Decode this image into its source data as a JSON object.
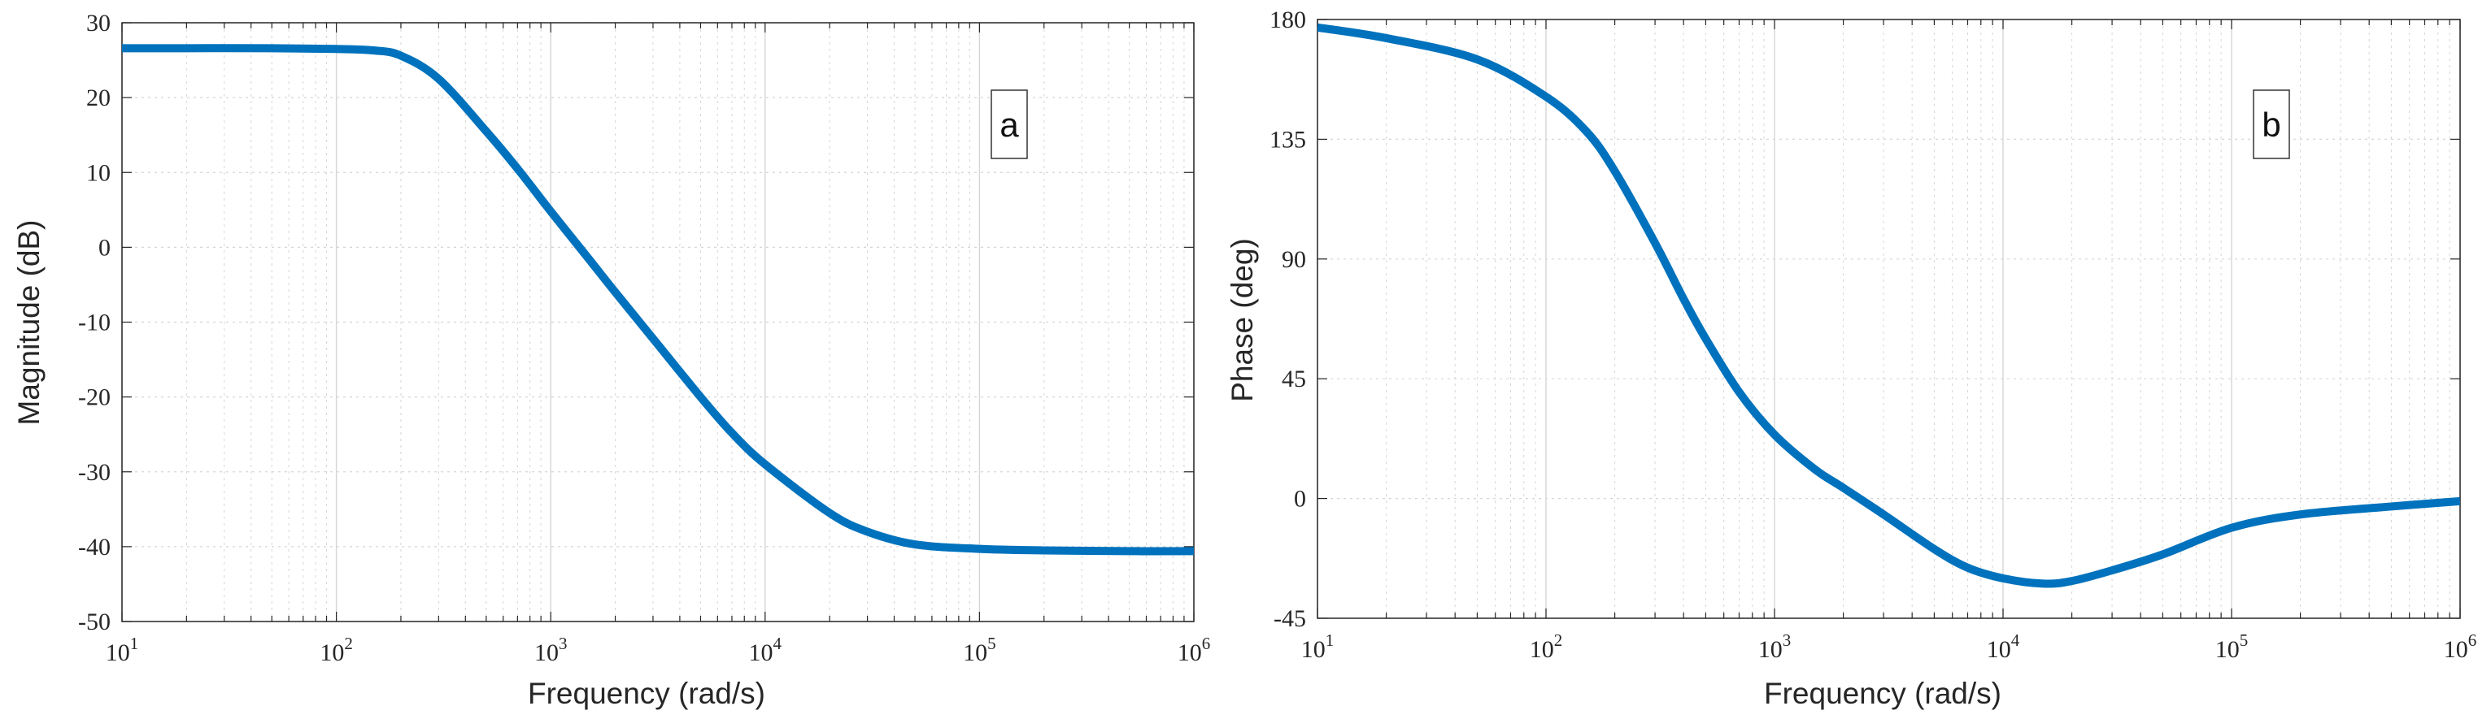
{
  "colors": {
    "line": "#0072bd",
    "grid": "#d6d6d6",
    "axis": "#262626"
  },
  "chart_data": [
    {
      "type": "line",
      "xlabel": "Frequency  (rad/s)",
      "ylabel": "Magnitude (dB)",
      "xscale": "log",
      "xlim": [
        10,
        1000000
      ],
      "ylim": [
        -50,
        30
      ],
      "grid": true,
      "x_ticks": [
        "10^1",
        "10^2",
        "10^3",
        "10^4",
        "10^5",
        "10^6"
      ],
      "y_ticks": [
        "30",
        "20",
        "10",
        "0",
        "-10",
        "-20",
        "-30",
        "-40",
        "-50"
      ],
      "annotation": "a",
      "series": [
        {
          "x": [
            10,
            20,
            50,
            100,
            150,
            200,
            300,
            500,
            700,
            1000,
            1500,
            2000,
            3000,
            5000,
            7000,
            10000,
            20000,
            30000,
            50000,
            100000,
            200000,
            500000,
            1000000
          ],
          "values": [
            26.6,
            26.6,
            26.6,
            26.5,
            26.3,
            25.6,
            22.5,
            15.5,
            10.5,
            4.8,
            -1.5,
            -6.0,
            -12.2,
            -20.0,
            -24.8,
            -29.0,
            -35.5,
            -38.0,
            -39.7,
            -40.3,
            -40.5,
            -40.6,
            -40.6
          ]
        }
      ]
    },
    {
      "type": "line",
      "xlabel": "Frequency  (rad/s)",
      "ylabel": "Phase (deg)",
      "xscale": "log",
      "xlim": [
        10,
        1000000
      ],
      "ylim": [
        -45,
        180
      ],
      "grid": true,
      "x_ticks": [
        "10^1",
        "10^2",
        "10^3",
        "10^4",
        "10^5",
        "10^6"
      ],
      "y_ticks": [
        "180",
        "135",
        "90",
        "45",
        "0",
        "-45"
      ],
      "annotation": "b",
      "series": [
        {
          "x": [
            10,
            20,
            50,
            100,
            150,
            200,
            300,
            400,
            500,
            700,
            1000,
            1500,
            2000,
            3000,
            5000,
            7000,
            10000,
            15000,
            20000,
            30000,
            50000,
            100000,
            200000,
            500000,
            1000000
          ],
          "values": [
            177,
            173,
            165,
            151,
            138,
            123,
            96,
            75,
            60,
            40,
            24,
            11,
            4,
            -6,
            -19,
            -26,
            -30,
            -32,
            -31,
            -27,
            -21,
            -11,
            -6,
            -3,
            -1
          ]
        }
      ]
    }
  ]
}
